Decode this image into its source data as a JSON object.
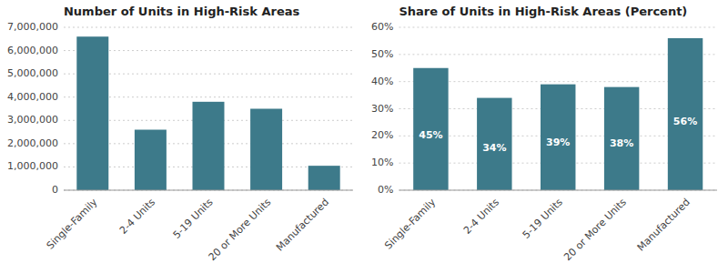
{
  "chart_data": [
    {
      "type": "bar",
      "title": "Number of Units in High-Risk Areas",
      "categories": [
        "Single-Family",
        "2-4 Units",
        "5-19 Units",
        "20 or More Units",
        "Manufactured"
      ],
      "values": [
        6600000,
        2600000,
        3800000,
        3500000,
        1050000
      ],
      "color": "#3d7a8a",
      "ylim": [
        0,
        7000000
      ],
      "yticks": [
        0,
        {
          "value": 1000000,
          "label": "1,000,000"
        },
        {
          "value": 2000000,
          "label": "2,000,000"
        },
        {
          "value": 3000000,
          "label": "3,000,000"
        },
        {
          "value": 4000000,
          "label": "4,000,000"
        },
        {
          "value": 5000000,
          "label": "5,000,000"
        },
        {
          "value": 6000000,
          "label": "6,000,000"
        },
        {
          "value": 7000000,
          "label": "7,000,000"
        }
      ],
      "grid": true
    },
    {
      "type": "bar",
      "title": "Share of Units in High-Risk Areas (Percent)",
      "categories": [
        "Single-Family",
        "2-4 Units",
        "5-19 Units",
        "20 or More Units",
        "Manufactured"
      ],
      "values": [
        45,
        34,
        39,
        38,
        56
      ],
      "value_labels": [
        "45%",
        "34%",
        "39%",
        "38%",
        "56%"
      ],
      "data_labels": true,
      "color": "#3d7a8a",
      "ylim": [
        0,
        60
      ],
      "yticks": [
        {
          "value": 0,
          "label": "0%"
        },
        {
          "value": 10,
          "label": "10%"
        },
        {
          "value": 20,
          "label": "20%"
        },
        {
          "value": 30,
          "label": "30%"
        },
        {
          "value": 40,
          "label": "40%"
        },
        {
          "value": 50,
          "label": "50%"
        },
        {
          "value": 60,
          "label": "60%"
        }
      ],
      "grid": true
    }
  ]
}
